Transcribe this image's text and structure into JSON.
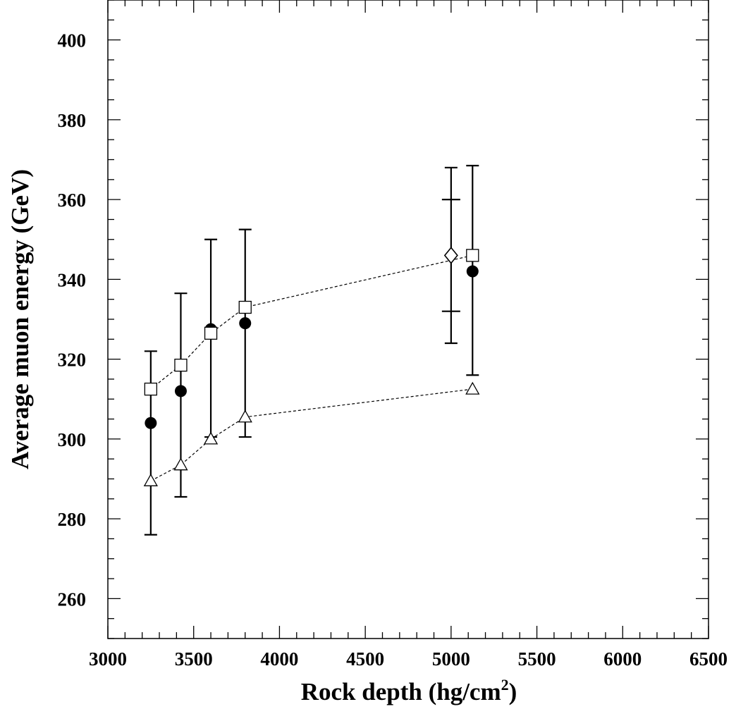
{
  "chart_data": {
    "type": "scatter",
    "title": "",
    "xlabel": "Rock depth (hg/cm",
    "xlabel_sup": "2",
    "xlabel_end": ")",
    "ylabel": "Average muon energy (GeV)",
    "xlim": [
      3000,
      6500
    ],
    "ylim": [
      250,
      410
    ],
    "x_ticks": [
      3000,
      3500,
      4000,
      4500,
      5000,
      5500,
      6000,
      6500
    ],
    "y_ticks": [
      260,
      280,
      300,
      320,
      340,
      360,
      380,
      400
    ],
    "x_tick_labels": [
      "3000",
      "3500",
      "4000",
      "4500",
      "5000",
      "5500",
      "6000",
      "6500"
    ],
    "y_tick_labels": [
      "260",
      "280",
      "300",
      "320",
      "340",
      "360",
      "380",
      "400"
    ],
    "grid": false,
    "series": [
      {
        "marker": "filled-circle",
        "color": "#000000",
        "connected": false,
        "x": [
          3250,
          3425,
          3600,
          3800,
          5125
        ],
        "y": [
          304,
          312,
          327.5,
          329,
          342
        ],
        "err_low": [
          276,
          285.5,
          300.5,
          300.5,
          316
        ],
        "err_high": [
          322,
          336.5,
          350,
          352.5,
          368.5
        ]
      },
      {
        "marker": "open-square",
        "color": "#000000",
        "connected": true,
        "x": [
          3250,
          3425,
          3600,
          3800,
          5125
        ],
        "y": [
          312.5,
          318.5,
          326.5,
          333,
          346
        ]
      },
      {
        "marker": "open-triangle",
        "color": "#000000",
        "connected": true,
        "x": [
          3250,
          3425,
          3600,
          3800,
          5125
        ],
        "y": [
          289.5,
          293.5,
          300,
          305.5,
          312.5
        ]
      },
      {
        "marker": "open-diamond",
        "color": "#000000",
        "connected": false,
        "x": [
          5000
        ],
        "y": [
          346
        ],
        "err_low": [
          324
        ],
        "err_high": [
          368
        ],
        "err_inner_low": [
          332
        ],
        "err_inner_high": [
          360
        ]
      }
    ]
  }
}
